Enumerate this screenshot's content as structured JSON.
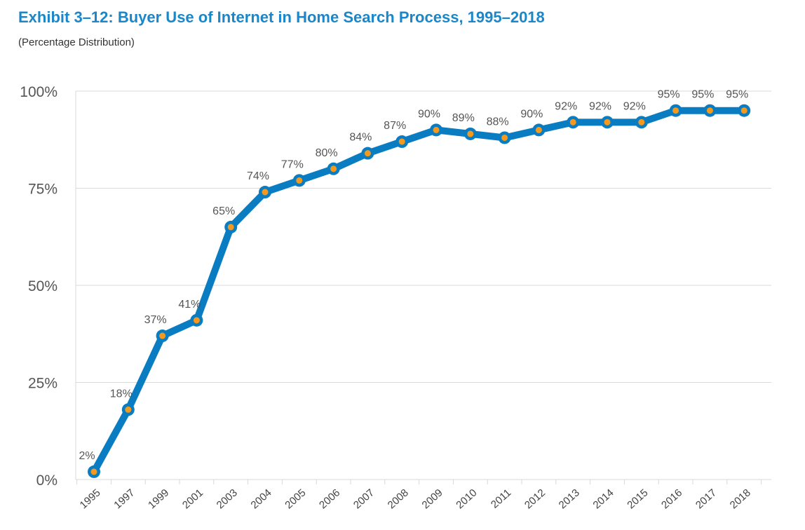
{
  "header": {
    "title": "Exhibit 3–12:  Buyer Use of Internet in Home Search Process, 1995–2018",
    "subtitle": "(Percentage Distribution)"
  },
  "colors": {
    "title": "#1b86c8",
    "line": "#0a7cc2",
    "marker": "#f39a1e",
    "grid": "#d9d9d9"
  },
  "chart_data": {
    "type": "line",
    "title": "Exhibit 3–12:  Buyer Use of Internet in Home Search Process, 1995–2018",
    "subtitle": "(Percentage Distribution)",
    "categories": [
      "1995",
      "1997",
      "1999",
      "2001",
      "2003",
      "2004",
      "2005",
      "2006",
      "2007",
      "2008",
      "2009",
      "2010",
      "2011",
      "2012",
      "2013",
      "2014",
      "2015",
      "2016",
      "2017",
      "2018"
    ],
    "series": [
      {
        "values": [
          2,
          18,
          37,
          41,
          65,
          74,
          77,
          80,
          84,
          87,
          90,
          89,
          88,
          90,
          92,
          92,
          92,
          95,
          95,
          95
        ]
      }
    ],
    "data_labels": [
      "2%",
      "18%",
      "37%",
      "41%",
      "65%",
      "74%",
      "77%",
      "80%",
      "84%",
      "87%",
      "90%",
      "89%",
      "88%",
      "90%",
      "92%",
      "92%",
      "92%",
      "95%",
      "95%",
      "95%"
    ],
    "ylim": [
      0,
      100
    ],
    "yticks": [
      0,
      25,
      50,
      75,
      100
    ],
    "ytick_labels": [
      "0%",
      "25%",
      "50%",
      "75%",
      "100%"
    ],
    "grid": true,
    "legend": "none"
  }
}
